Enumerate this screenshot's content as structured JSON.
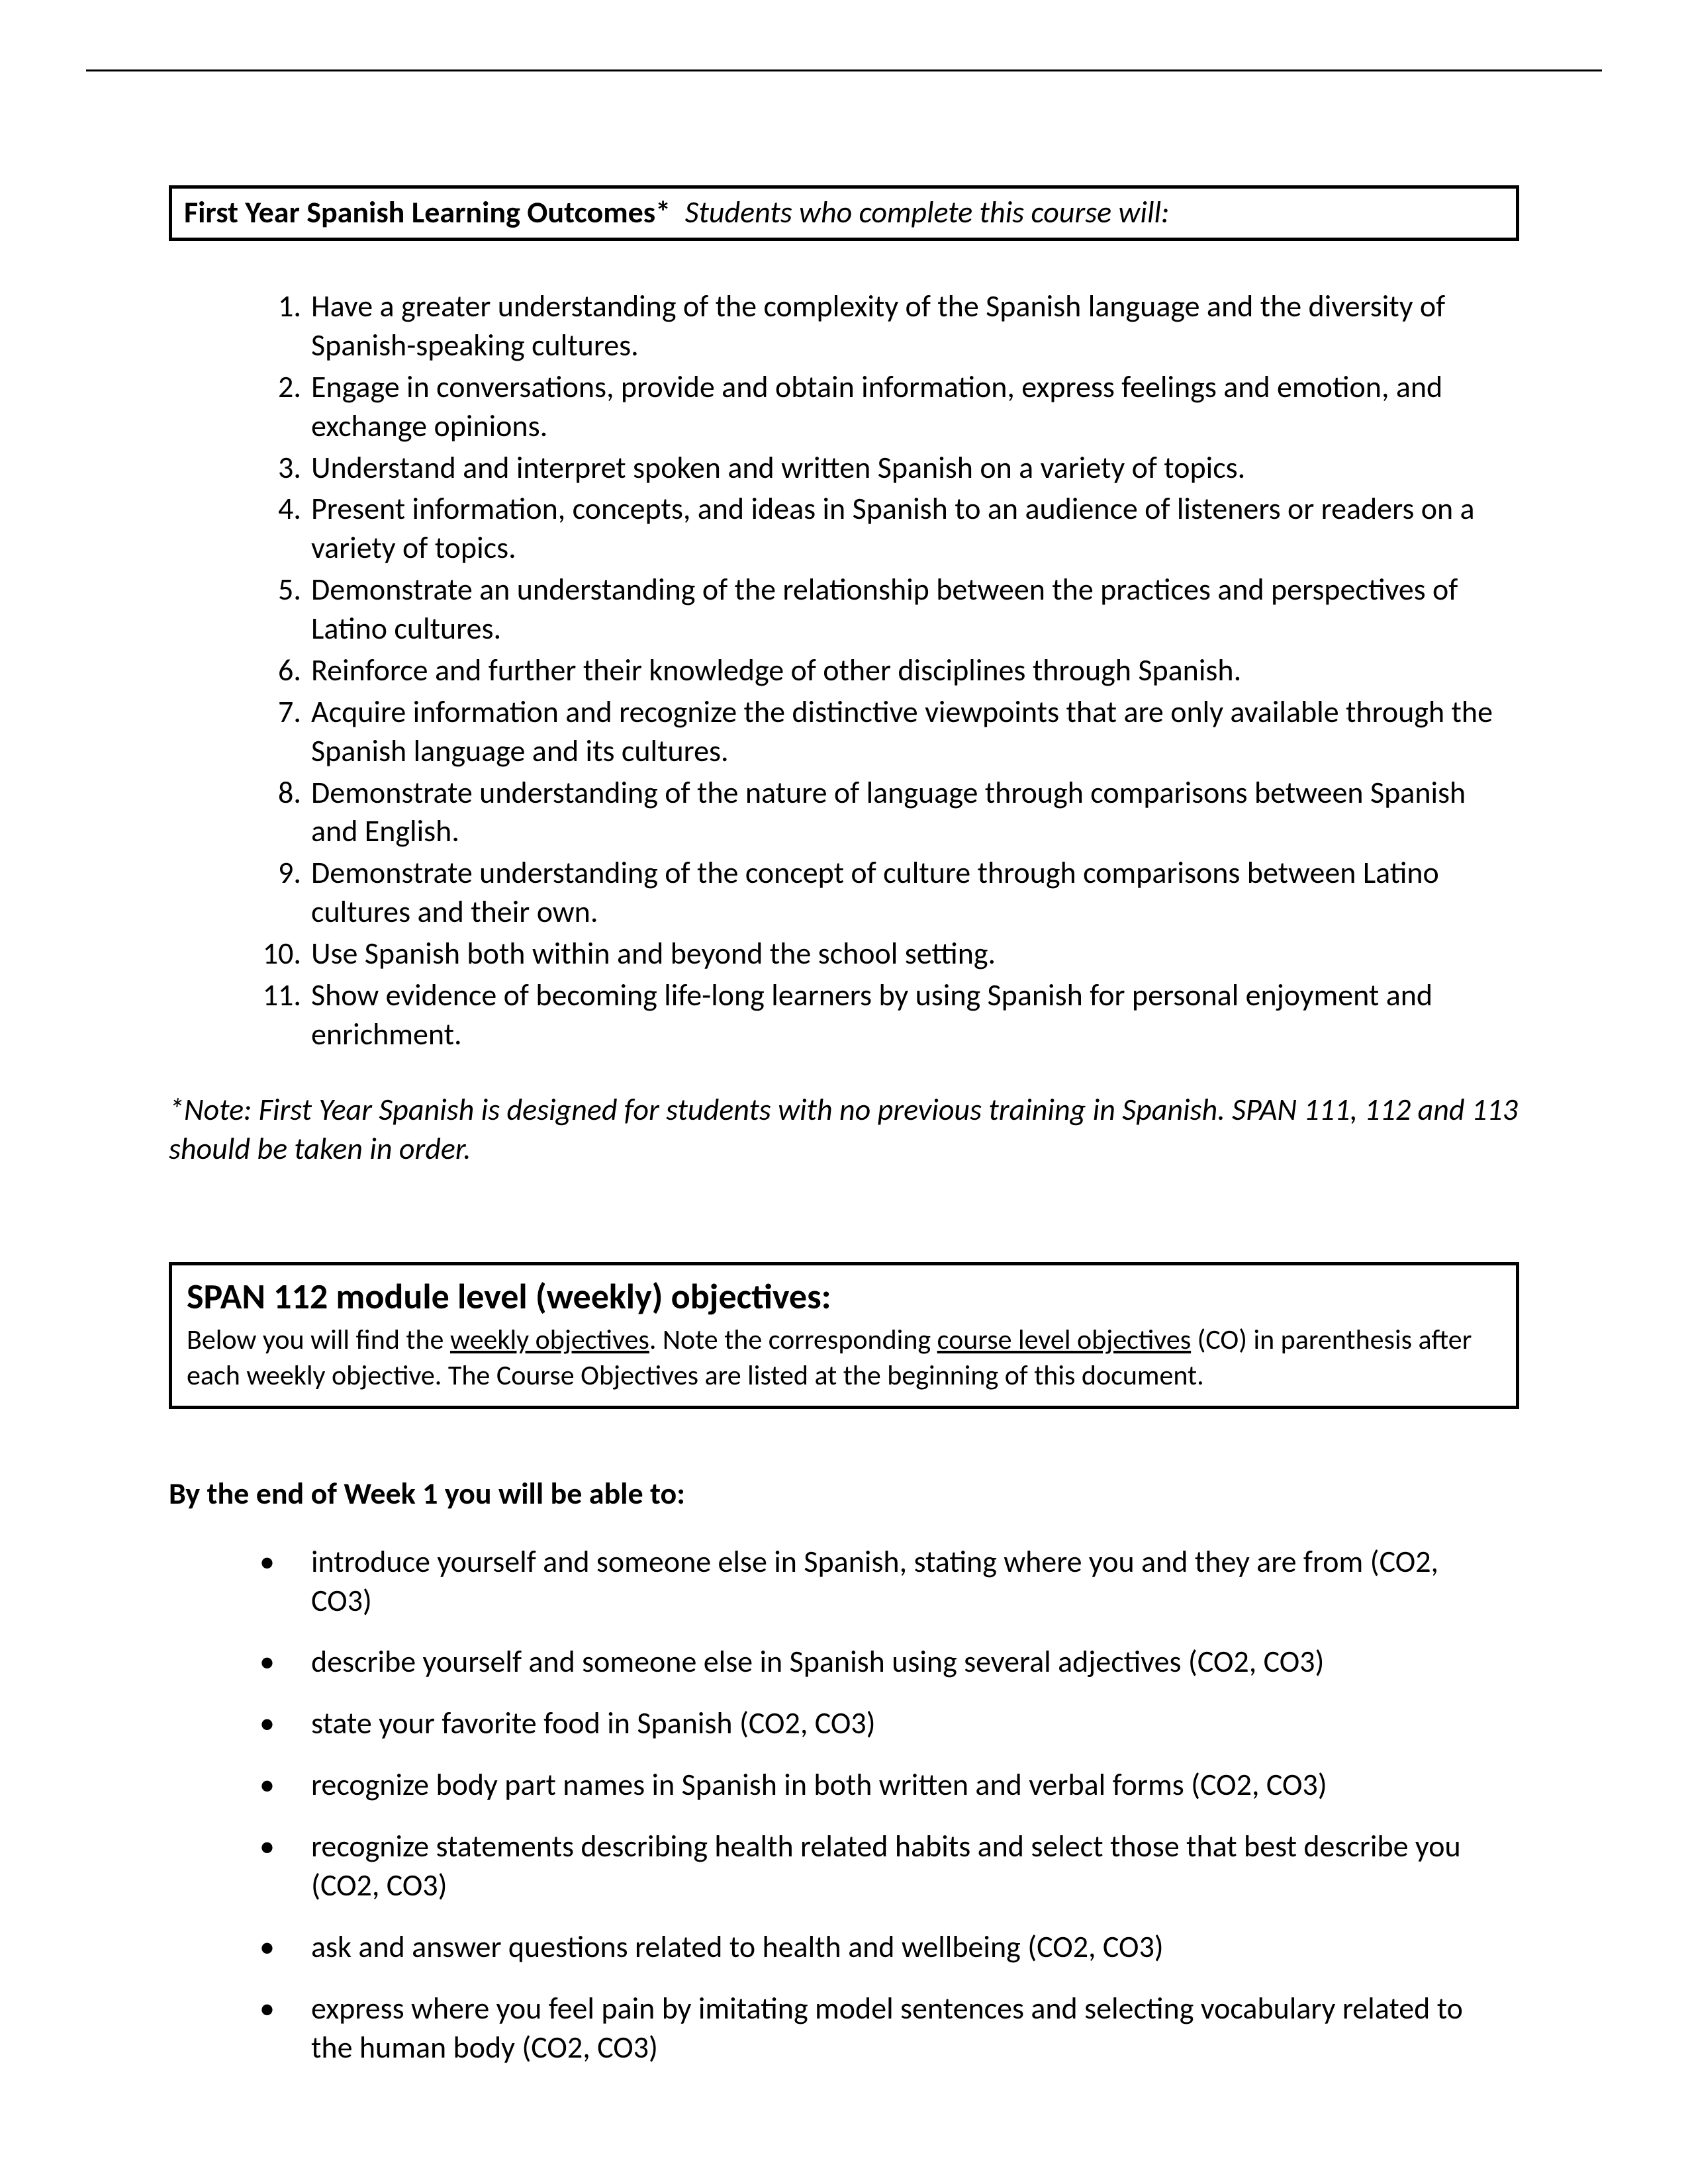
{
  "header": {
    "title_bold": "First Year Spanish Learning Outcomes*",
    "title_italic": "Students who complete this course will:"
  },
  "outcomes": [
    "Have a greater understanding of the complexity of the Spanish language and the diversity of Spanish-speaking cultures.",
    "Engage in conversations, provide and obtain information, express feelings and emotion, and exchange opinions.",
    "Understand and interpret spoken and written Spanish on a variety of topics.",
    "Present information, concepts, and ideas in Spanish to an audience of listeners or readers on a variety of topics.",
    "Demonstrate an understanding of the relationship between the practices and perspectives of Latino cultures.",
    "Reinforce and further their knowledge of other disciplines through Spanish.",
    "Acquire information and recognize the distinctive viewpoints that are only available through the Spanish language and its cultures.",
    "Demonstrate understanding of the nature of language through comparisons between Spanish and English.",
    "Demonstrate understanding of the concept of culture through comparisons between Latino cultures and their own.",
    "Use Spanish both within and beyond the school setting.",
    "Show evidence of becoming life-long learners by using Spanish for personal enjoyment and enrichment."
  ],
  "note": "*Note: First Year Spanish is designed for students with no previous training in Spanish.  SPAN 111, 112 and 113 should be taken in order.",
  "module": {
    "title": "SPAN 112 module level (weekly) objectives:",
    "sub_pre": "Below you will find the ",
    "sub_u1": "weekly objectives",
    "sub_mid": ". Note the corresponding ",
    "sub_u2": "course level objectives",
    "sub_post": " (CO) in parenthesis after each weekly objective. The Course Objectives are listed at the beginning of this document."
  },
  "week_heading": "By the end of Week 1 you will be able to:",
  "week_bullets": [
    "introduce yourself and someone else in Spanish, stating where you and they are from (CO2, CO3)",
    "describe yourself and someone else in Spanish using several adjectives (CO2, CO3)",
    "state your favorite food in Spanish (CO2, CO3)",
    "recognize body part names in Spanish in both written and verbal forms (CO2, CO3)",
    "recognize statements describing health related habits and select those that best describe you (CO2, CO3)",
    "ask and answer questions related to health and wellbeing (CO2, CO3)",
    "express where you feel pain by imitating model sentences and selecting vocabulary related to the human body (CO2, CO3)"
  ]
}
